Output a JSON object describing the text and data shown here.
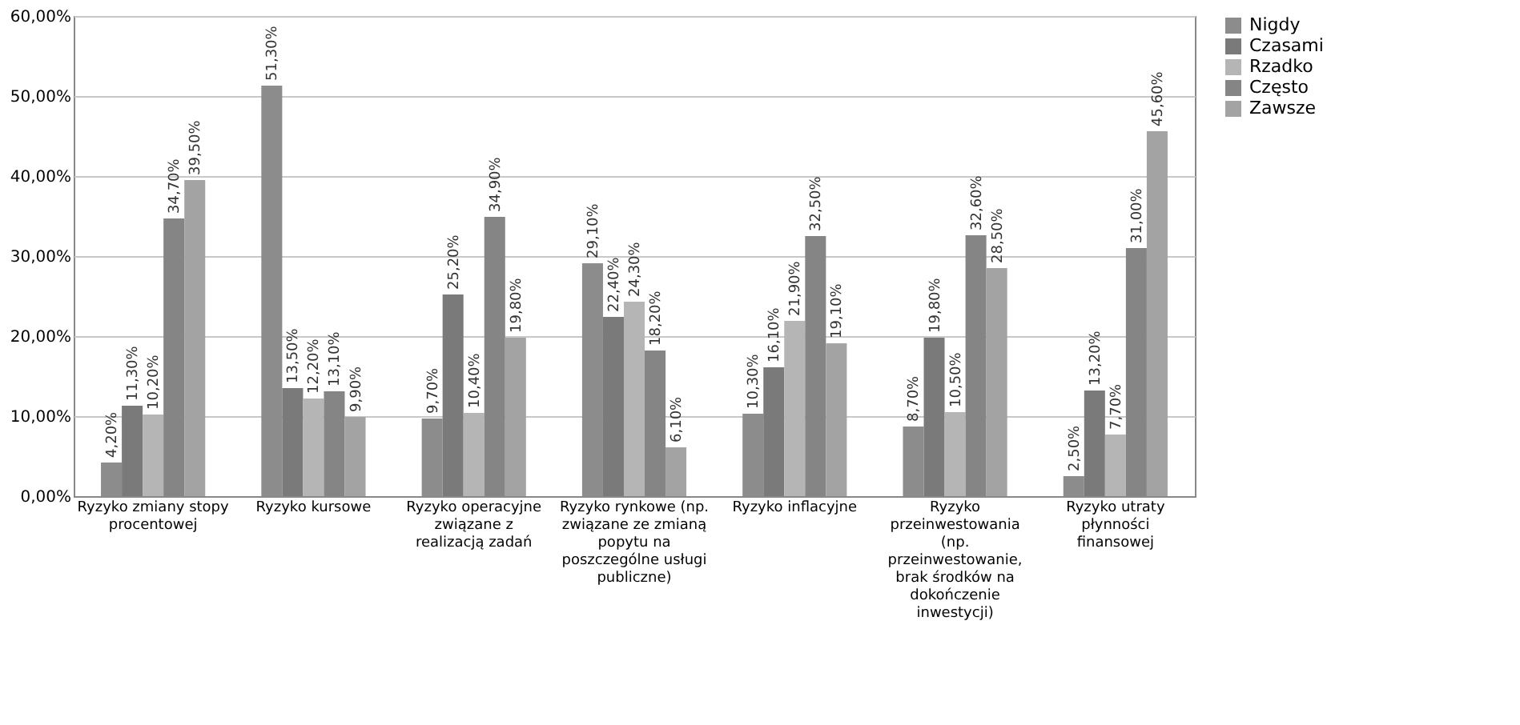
{
  "chart_data": {
    "type": "bar",
    "categories": [
      "Ryzyko zmiany stopy procentowej",
      "Ryzyko kursowe",
      "Ryzyko operacyjne związane z realizacją zadań",
      "Ryzyko rynkowe (np. związane  ze zmianą popytu na poszczególne usługi publiczne)",
      "Ryzyko inflacyjne",
      "Ryzyko przeinwestowania (np. przeinwestowanie, brak środków na dokończenie inwestycji)",
      "Ryzyko utraty płynności finansowej"
    ],
    "series": [
      {
        "name": "Nigdy",
        "color": "#8c8c8c",
        "values": [
          4.2,
          51.3,
          9.7,
          29.1,
          10.3,
          8.7,
          2.5
        ],
        "value_labels": [
          "4,20%",
          "51,30%",
          "9,70%",
          "29,10%",
          "10,30%",
          "8,70%",
          "2,50%"
        ]
      },
      {
        "name": "Czasami",
        "color": "#7a7a7a",
        "values": [
          11.3,
          13.5,
          25.2,
          22.4,
          16.1,
          19.8,
          13.2
        ],
        "value_labels": [
          "11,30%",
          "13,50%",
          "25,20%",
          "22,40%",
          "16,10%",
          "19,80%",
          "13,20%"
        ]
      },
      {
        "name": "Rzadko",
        "color": "#b5b5b5",
        "values": [
          10.2,
          12.2,
          10.4,
          24.3,
          21.9,
          10.5,
          7.7
        ],
        "value_labels": [
          "10,20%",
          "12,20%",
          "10,40%",
          "24,30%",
          "21,90%",
          "10,50%",
          "7,70%"
        ]
      },
      {
        "name": "Często",
        "color": "#858585",
        "values": [
          34.7,
          13.1,
          34.9,
          18.2,
          32.5,
          32.6,
          31.0
        ],
        "value_labels": [
          "34,70%",
          "13,10%",
          "34,90%",
          "18,20%",
          "32,50%",
          "32,60%",
          "31,00%"
        ]
      },
      {
        "name": "Zawsze",
        "color": "#a3a3a3",
        "values": [
          39.5,
          9.9,
          19.8,
          6.1,
          19.1,
          28.5,
          45.6
        ],
        "value_labels": [
          "39,50%",
          "9,90%",
          "19,80%",
          "6,10%",
          "19,10%",
          "28,50%",
          "45,60%"
        ]
      }
    ],
    "ylim": [
      0,
      60
    ],
    "yticks": [
      {
        "value": 0,
        "label": "0,00%"
      },
      {
        "value": 10,
        "label": "10,00%"
      },
      {
        "value": 20,
        "label": "20,00%"
      },
      {
        "value": 30,
        "label": "30,00%"
      },
      {
        "value": 40,
        "label": "40,00%"
      },
      {
        "value": 50,
        "label": "50,00%"
      },
      {
        "value": 60,
        "label": "60,00%"
      }
    ],
    "grid": "y",
    "legend": "right"
  }
}
